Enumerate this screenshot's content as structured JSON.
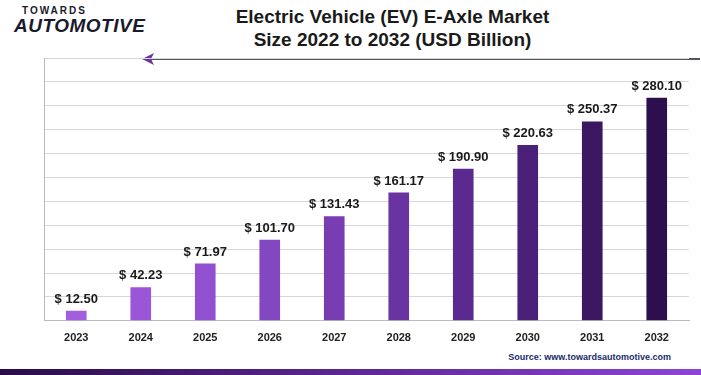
{
  "chart_data": {
    "type": "bar",
    "title": "Electric Vehicle (EV) E-Axle Market Size 2022 to 2032 (USD Billion)",
    "brand": [
      "TOWARDS",
      "AUTOMOTIVE"
    ],
    "source": "Source: www.towardsautomotive.com",
    "categories": [
      "2023",
      "2024",
      "2025",
      "2026",
      "2027",
      "2028",
      "2029",
      "2030",
      "2031",
      "2032"
    ],
    "values": [
      12.5,
      42.23,
      71.97,
      101.7,
      131.43,
      161.17,
      190.9,
      220.63,
      250.37,
      280.1
    ],
    "value_labels": [
      "$ 12.50",
      "$ 42.23",
      "$ 71.97",
      "$ 101.70",
      "$ 131.43",
      "$ 161.17",
      "$ 190.90",
      "$ 220.63",
      "$ 250.37",
      "$ 280.10"
    ],
    "colors": [
      "#a35ee0",
      "#9a55d8",
      "#9050cf",
      "#8447c2",
      "#783db3",
      "#6a33a2",
      "#5b2a8e",
      "#4b2078",
      "#3b1762",
      "#2c0f4c"
    ],
    "ylim": [
      0,
      330
    ],
    "yticks": [
      0,
      30,
      60,
      90,
      120,
      150,
      180,
      210,
      240,
      270,
      300,
      330
    ],
    "grid": true,
    "data_labels": true,
    "tick_labels": "x"
  }
}
